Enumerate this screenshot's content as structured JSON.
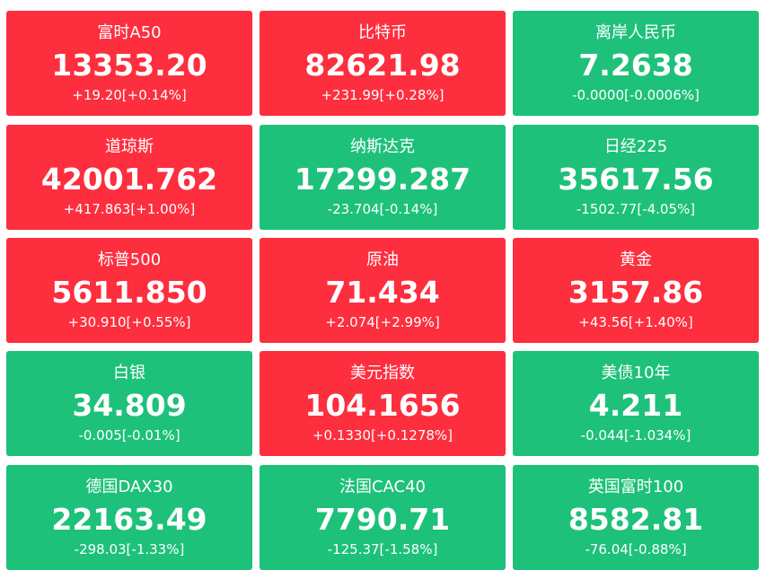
{
  "colors": {
    "up": "#fd2e3e",
    "down": "#1ec17a",
    "text": "#ffffff"
  },
  "tiles": [
    {
      "name": "富时A50",
      "value": "13353.20",
      "change": "+19.20[+0.14%]",
      "trend": "up"
    },
    {
      "name": "比特币",
      "value": "82621.98",
      "change": "+231.99[+0.28%]",
      "trend": "up"
    },
    {
      "name": "离岸人民币",
      "value": "7.2638",
      "change": "-0.0000[-0.0006%]",
      "trend": "down"
    },
    {
      "name": "道琼斯",
      "value": "42001.762",
      "change": "+417.863[+1.00%]",
      "trend": "up"
    },
    {
      "name": "纳斯达克",
      "value": "17299.287",
      "change": "-23.704[-0.14%]",
      "trend": "down"
    },
    {
      "name": "日经225",
      "value": "35617.56",
      "change": "-1502.77[-4.05%]",
      "trend": "down"
    },
    {
      "name": "标普500",
      "value": "5611.850",
      "change": "+30.910[+0.55%]",
      "trend": "up"
    },
    {
      "name": "原油",
      "value": "71.434",
      "change": "+2.074[+2.99%]",
      "trend": "up"
    },
    {
      "name": "黄金",
      "value": "3157.86",
      "change": "+43.56[+1.40%]",
      "trend": "up"
    },
    {
      "name": "白银",
      "value": "34.809",
      "change": "-0.005[-0.01%]",
      "trend": "down"
    },
    {
      "name": "美元指数",
      "value": "104.1656",
      "change": "+0.1330[+0.1278%]",
      "trend": "up"
    },
    {
      "name": "美债10年",
      "value": "4.211",
      "change": "-0.044[-1.034%]",
      "trend": "down"
    },
    {
      "name": "德国DAX30",
      "value": "22163.49",
      "change": "-298.03[-1.33%]",
      "trend": "down"
    },
    {
      "name": "法国CAC40",
      "value": "7790.71",
      "change": "-125.37[-1.58%]",
      "trend": "down"
    },
    {
      "name": "英国富时100",
      "value": "8582.81",
      "change": "-76.04[-0.88%]",
      "trend": "down"
    }
  ]
}
